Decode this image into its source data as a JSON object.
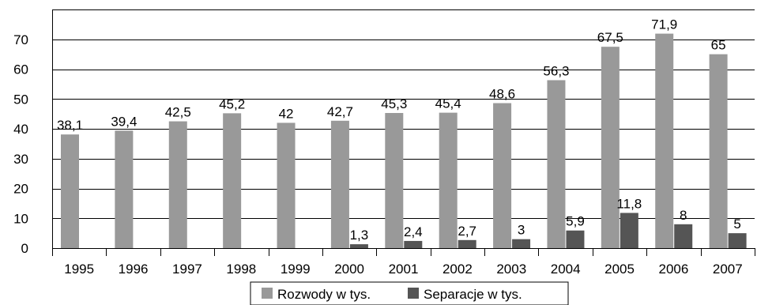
{
  "chart_data": {
    "type": "bar",
    "categories": [
      "1995",
      "1996",
      "1997",
      "1998",
      "1999",
      "2000",
      "2001",
      "2002",
      "2003",
      "2004",
      "2005",
      "2006",
      "2007"
    ],
    "series": [
      {
        "name": "Rozwody w tys.",
        "color": "#999999",
        "values": [
          38.1,
          39.4,
          42.5,
          45.2,
          42,
          42.7,
          45.3,
          45.4,
          48.6,
          56.3,
          67.5,
          71.9,
          65
        ],
        "labels": [
          "38,1",
          "39,4",
          "42,5",
          "45,2",
          "42",
          "42,7",
          "45,3",
          "45,4",
          "48,6",
          "56,3",
          "67,5",
          "71,9",
          "65"
        ]
      },
      {
        "name": "Separacje w tys.",
        "color": "#555555",
        "values": [
          null,
          null,
          null,
          null,
          null,
          1.3,
          2.4,
          2.7,
          3,
          5.9,
          11.8,
          8,
          5
        ],
        "labels": [
          "",
          "",
          "",
          "",
          "",
          "1,3",
          "2,4",
          "2,7",
          "3",
          "5,9",
          "11,8",
          "8",
          "5"
        ]
      }
    ],
    "y_ticks": [
      "0",
      "10",
      "20",
      "30",
      "40",
      "50",
      "60",
      "70"
    ],
    "ylim": [
      0,
      80
    ],
    "grid": true,
    "legend_position": "bottom"
  }
}
